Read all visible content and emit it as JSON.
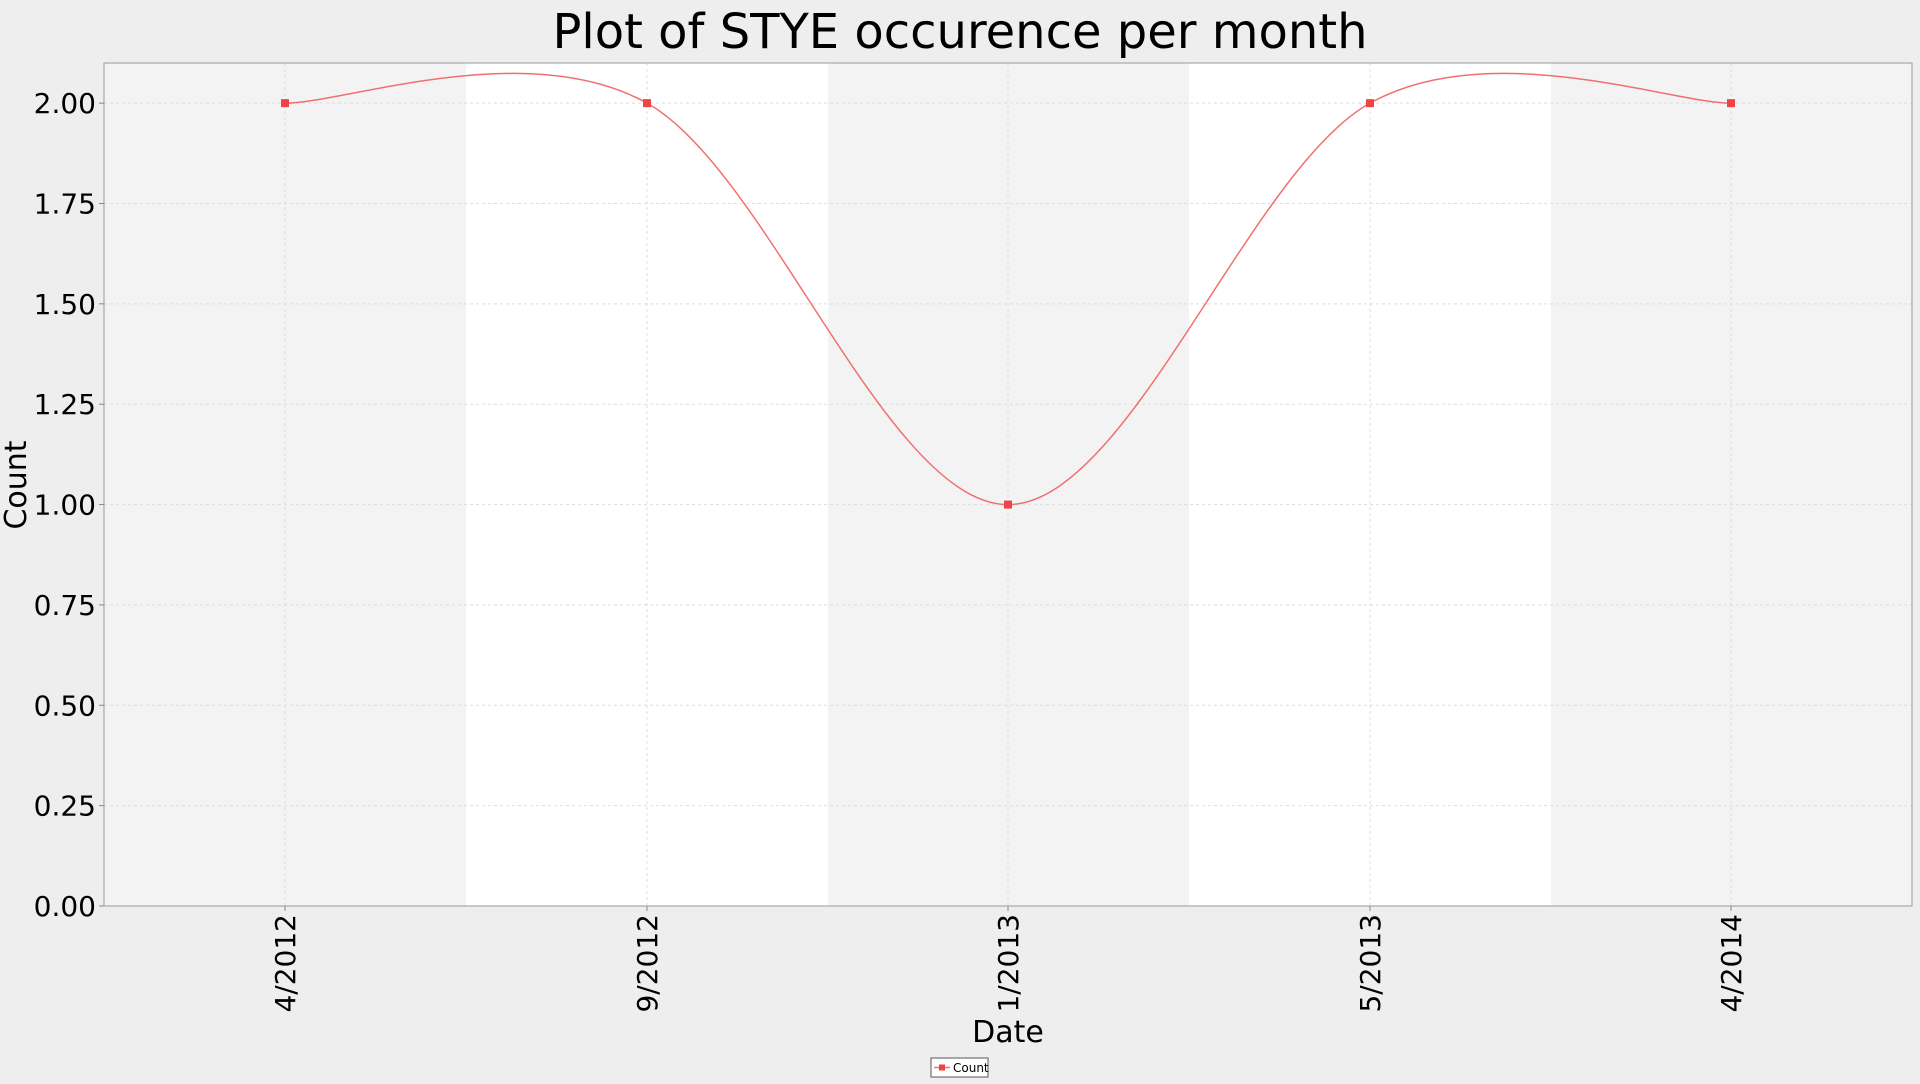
{
  "chart_data": {
    "type": "line",
    "title": "Plot of STYE occurence per month",
    "xlabel": "Date",
    "ylabel": "Count",
    "categories": [
      "4/2012",
      "9/2012",
      "1/2013",
      "5/2013",
      "4/2014"
    ],
    "series": [
      {
        "name": "Count",
        "values": [
          2,
          2,
          1,
          2,
          2
        ]
      }
    ],
    "ylim": [
      0,
      2.1
    ],
    "yticks": [
      "0.00",
      "0.25",
      "0.50",
      "0.75",
      "1.00",
      "1.25",
      "1.50",
      "1.75",
      "2.00"
    ],
    "grid": true,
    "legend": "bottom-center",
    "colors": {
      "line": "#f07070",
      "marker": "#ee4444",
      "band_dark": "#f3f3f3",
      "band_light": "#ffffff",
      "grid": "#dddddd",
      "background": "#eeeeee"
    }
  }
}
